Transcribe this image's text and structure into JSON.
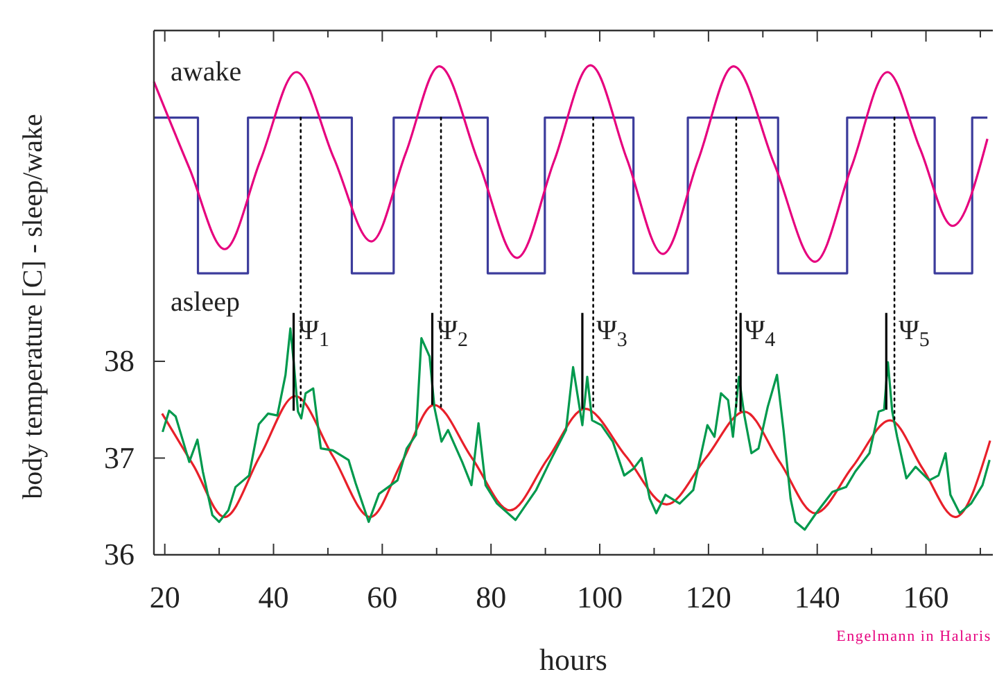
{
  "chart_data": {
    "type": "line",
    "xlabel": "hours",
    "ylabel": "body temperature [C] - sleep/wake",
    "xlim": [
      18,
      172.3
    ],
    "ylim": [
      36,
      41.42
    ],
    "xticks": [
      20,
      {
        "value": 30,
        "label": null
      },
      40,
      {
        "value": 50,
        "label": null
      },
      60,
      {
        "value": 70,
        "label": null
      },
      80,
      {
        "value": 90,
        "label": null
      },
      100,
      {
        "value": 110,
        "label": null
      },
      120,
      {
        "value": 130,
        "label": null
      },
      140,
      {
        "value": 150,
        "label": null
      },
      160,
      {
        "value": 170,
        "label": null
      }
    ],
    "yticks": [
      36,
      37,
      38
    ],
    "marker": "none",
    "series": [
      {
        "color": "#3c3c9c",
        "x": [
          18,
          26.1,
          26.1,
          35.3,
          35.3,
          54.4,
          54.4,
          62.1,
          62.1,
          79.4,
          79.4,
          89.9,
          89.9,
          106.2,
          106.2,
          116.2,
          116.2,
          132.8,
          132.8,
          145.5,
          145.5,
          161.6,
          161.6,
          168.5,
          168.5,
          171.3
        ],
        "values": [
          40.52,
          40.52,
          38.91,
          38.91,
          40.52,
          40.52,
          38.91,
          38.91,
          40.52,
          40.52,
          38.91,
          38.91,
          40.52,
          40.52,
          38.91,
          38.91,
          40.52,
          40.52,
          38.91,
          38.91,
          40.52,
          40.52,
          38.91,
          38.91,
          40.52,
          40.52
        ]
      },
      {
        "color": "#e6007e",
        "x": [
          18,
          24.5,
          31.0,
          37.6,
          44.2,
          51.1,
          58.0,
          64.3,
          70.5,
          77.7,
          84.8,
          91.6,
          98.3,
          105.0,
          111.6,
          118.1,
          124.6,
          132.1,
          139.6,
          146.3,
          152.9,
          158.9,
          164.9,
          171.3
        ],
        "values": [
          40.89,
          40.0,
          39.16,
          40.08,
          40.99,
          40.1,
          39.24,
          40.15,
          41.05,
          40.06,
          39.07,
          40.07,
          41.06,
          40.09,
          39.11,
          40.08,
          41.05,
          40.04,
          39.03,
          40.01,
          40.99,
          40.2,
          39.4,
          40.3
        ]
      },
      {
        "color": "#e8202a",
        "x": [
          19.5,
          25.3,
          31.0,
          37.5,
          44.0,
          50.9,
          57.8,
          63.7,
          69.5,
          76.5,
          83.5,
          90.4,
          97.3,
          104.8,
          112.3,
          119.5,
          126.6,
          133.1,
          139.6,
          146.5,
          153.4,
          159.4,
          165.4,
          171.8
        ],
        "values": [
          37.46,
          36.92,
          36.39,
          37.02,
          37.64,
          37.02,
          36.39,
          36.97,
          37.55,
          37.0,
          36.46,
          36.99,
          37.51,
          37.02,
          36.52,
          37.0,
          37.48,
          36.96,
          36.43,
          36.91,
          37.39,
          36.89,
          36.39,
          37.18
        ]
      },
      {
        "color": "#00994d",
        "x": [
          19.6,
          20.8,
          22.0,
          24.5,
          26.0,
          27.0,
          28.75,
          30.0,
          31.7,
          33.0,
          35.5,
          37.3,
          39.0,
          40.7,
          42.2,
          43.1,
          43.7,
          44.5,
          45.1,
          45.9,
          47.3,
          48.7,
          50.9,
          53.8,
          55.1,
          57.5,
          59.4,
          62.8,
          64.5,
          66.2,
          67.2,
          68.7,
          69.6,
          70.9,
          72.1,
          74.7,
          76.4,
          77.7,
          79.0,
          81.1,
          84.5,
          88.3,
          90.8,
          93.8,
          95.1,
          96.8,
          97.7,
          98.6,
          100.3,
          102.4,
          104.5,
          106.2,
          107.7,
          109.2,
          110.4,
          112.1,
          114.7,
          117.2,
          119.8,
          121.1,
          122.3,
          123.6,
          124.5,
          125.6,
          126.6,
          127.9,
          129.2,
          130.9,
          132.6,
          133.8,
          135.1,
          136.0,
          137.7,
          139.8,
          142.8,
          145.3,
          147.0,
          149.6,
          151.3,
          152.3,
          153.0,
          153.8,
          154.7,
          156.4,
          158.1,
          160.6,
          162.3,
          163.6,
          164.5,
          166.2,
          168.3,
          170.4,
          171.7
        ],
        "values": [
          37.27,
          37.49,
          37.43,
          36.96,
          37.19,
          36.86,
          36.41,
          36.34,
          36.46,
          36.7,
          36.82,
          37.35,
          37.46,
          37.44,
          37.86,
          38.34,
          38.0,
          37.48,
          37.41,
          37.67,
          37.72,
          37.1,
          37.08,
          36.98,
          36.74,
          36.34,
          36.63,
          36.77,
          37.1,
          37.24,
          38.24,
          38.05,
          37.52,
          37.17,
          37.29,
          36.96,
          36.72,
          37.36,
          36.72,
          36.53,
          36.36,
          36.67,
          36.96,
          37.29,
          37.94,
          37.34,
          37.84,
          37.39,
          37.34,
          37.17,
          36.82,
          36.89,
          37.0,
          36.58,
          36.43,
          36.62,
          36.53,
          36.67,
          37.34,
          37.22,
          37.67,
          37.6,
          37.22,
          37.84,
          37.44,
          37.05,
          37.1,
          37.53,
          37.86,
          37.29,
          36.58,
          36.34,
          36.26,
          36.43,
          36.65,
          36.7,
          36.86,
          37.05,
          37.48,
          37.5,
          37.99,
          37.48,
          37.22,
          36.79,
          36.91,
          36.77,
          36.82,
          37.05,
          36.62,
          36.43,
          36.53,
          36.72,
          36.98
        ]
      },
      {
        "color": "#000000",
        "line_style": "solid",
        "x": [
          43.7,
          43.7,
          null,
          69.2,
          69.2,
          null,
          96.8,
          96.8,
          null,
          125.9,
          125.9,
          null,
          152.7,
          152.7
        ],
        "values": [
          38.5,
          37.49,
          null,
          38.5,
          37.55,
          null,
          38.5,
          37.51,
          null,
          38.5,
          37.48,
          null,
          38.5,
          37.5
        ]
      },
      {
        "color": "#000000",
        "line_style": "dotted",
        "x": [
          45.0,
          45.0,
          null,
          70.8,
          70.8,
          null,
          98.8,
          98.8,
          null,
          125.1,
          125.1,
          null,
          154.2,
          154.2
        ],
        "values": [
          40.52,
          37.5,
          null,
          40.52,
          37.5,
          null,
          40.52,
          37.5,
          null,
          40.52,
          37.5,
          null,
          40.52,
          37.4
        ]
      }
    ],
    "annotations": [
      "awake",
      "asleep",
      {
        "text": "Ψ$_{1}$",
        "x": 44.6,
        "y": 38.33
      },
      {
        "text": "Ψ$_{2}$",
        "x": 70.1,
        "y": 38.33
      },
      {
        "text": "Ψ$_{3}$",
        "x": 99.4,
        "y": 38.33
      },
      {
        "text": "Ψ$_{4}$",
        "x": 126.6,
        "y": 38.33
      },
      {
        "text": "Ψ$_{5}$",
        "x": 155.0,
        "y": 38.33
      },
      "Engelmann in Halaris"
    ]
  }
}
